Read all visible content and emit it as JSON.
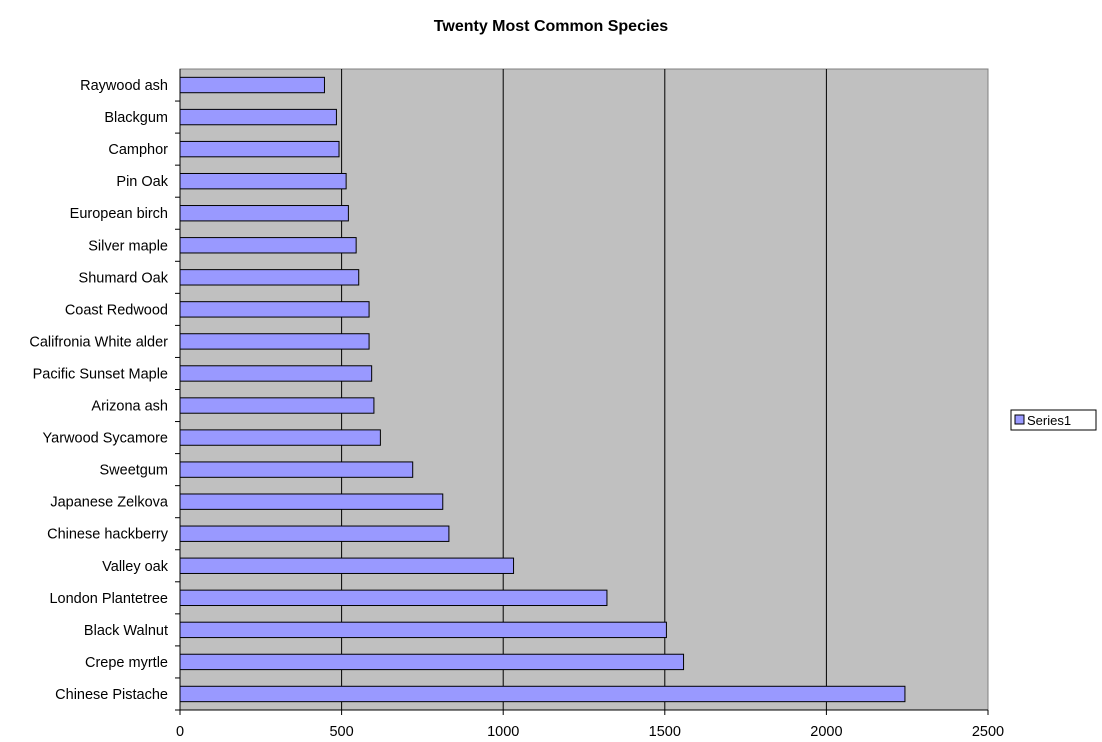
{
  "chart_data": {
    "type": "bar",
    "orientation": "horizontal",
    "title": "Twenty Most Common Species",
    "xlabel": "",
    "ylabel": "",
    "categories": [
      "Chinese Pistache",
      "Crepe myrtle",
      "Black Walnut",
      "London Plantetree",
      "Valley oak",
      "Chinese hackberry",
      "Japanese Zelkova",
      "Sweetgum",
      "Yarwood Sycamore",
      "Arizona ash",
      "Pacific Sunset Maple",
      "Califronia White alder",
      "Coast Redwood",
      "Shumard Oak",
      "Silver maple",
      "European birch",
      "Pin Oak",
      "Camphor",
      "Blackgum",
      "Raywood ash"
    ],
    "series": [
      {
        "name": "Series1",
        "color": "#9999ff",
        "values": [
          2243,
          1558,
          1505,
          1321,
          1032,
          832,
          813,
          720,
          620,
          600,
          593,
          585,
          585,
          553,
          545,
          521,
          514,
          492,
          484,
          447
        ]
      }
    ],
    "xlim": [
      0,
      2500
    ],
    "xticks": [
      "0",
      "500",
      "1000",
      "1500",
      "2000",
      "2500"
    ],
    "grid": "vertical major",
    "legend": "right",
    "plot_background": "#c0c0c0"
  }
}
